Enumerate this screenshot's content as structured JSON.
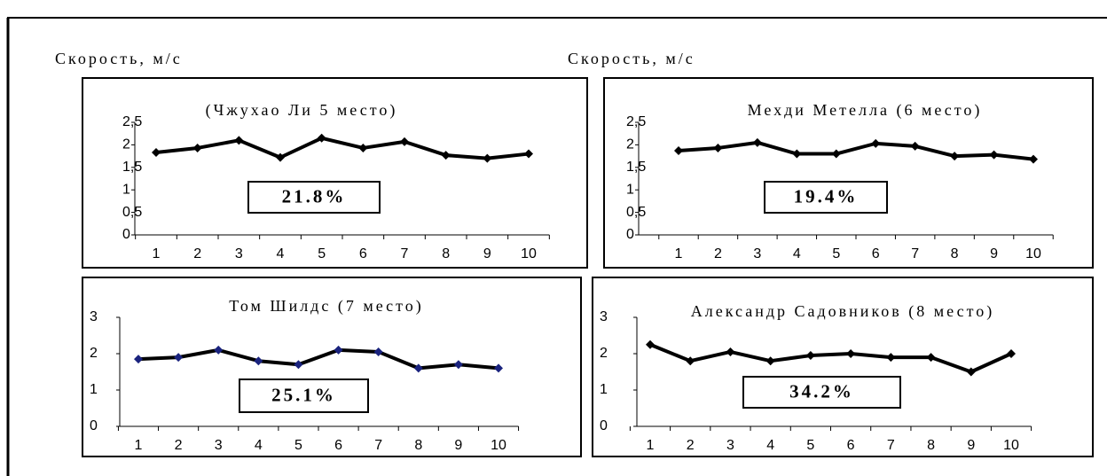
{
  "chart_data": [
    {
      "type": "line",
      "title": "(Чжухао Ли 5 место)",
      "y_label": "Скорость, м/с",
      "annotation": "21.8%",
      "categories": [
        "1",
        "2",
        "3",
        "4",
        "5",
        "6",
        "7",
        "8",
        "9",
        "10"
      ],
      "values": [
        1.83,
        1.93,
        2.1,
        1.72,
        2.15,
        1.93,
        2.07,
        1.77,
        1.7,
        1.8
      ],
      "color": "#000000",
      "ylim": [
        0,
        2.5
      ],
      "yticks": [
        0,
        {
          "value": 0.5,
          "label": "0,5"
        },
        1,
        {
          "value": 1.5,
          "label": "1,5"
        },
        2,
        {
          "value": 2.5,
          "label": "2,5"
        }
      ]
    },
    {
      "type": "line",
      "title": "Мехди Метелла (6 место)",
      "y_label": "Скорость, м/с",
      "annotation": "19.4%",
      "categories": [
        "1",
        "2",
        "3",
        "4",
        "5",
        "6",
        "7",
        "8",
        "9",
        "10"
      ],
      "values": [
        1.87,
        1.93,
        2.05,
        1.8,
        1.8,
        2.03,
        1.97,
        1.75,
        1.78,
        1.68
      ],
      "color": "#000000",
      "ylim": [
        0,
        2.5
      ],
      "yticks": [
        0,
        {
          "value": 0.5,
          "label": "0,5"
        },
        1,
        {
          "value": 1.5,
          "label": "1,5"
        },
        2,
        {
          "value": 2.5,
          "label": "2,5"
        }
      ]
    },
    {
      "type": "line",
      "title": "Том Шилдс (7 место)",
      "annotation": "25.1%",
      "categories": [
        "1",
        "2",
        "3",
        "4",
        "5",
        "6",
        "7",
        "8",
        "9",
        "10"
      ],
      "values": [
        1.85,
        1.9,
        2.1,
        1.8,
        1.7,
        2.1,
        2.05,
        1.6,
        1.7,
        1.6
      ],
      "color": "#000000",
      "marker_color": "#1a237e",
      "ylim": [
        0,
        3
      ],
      "yticks": [
        0,
        1,
        2,
        3
      ]
    },
    {
      "type": "line",
      "title": "Александр Садовников (8 место)",
      "annotation": "34.2%",
      "categories": [
        "1",
        "2",
        "3",
        "4",
        "5",
        "6",
        "7",
        "8",
        "9",
        "10"
      ],
      "values": [
        2.25,
        1.8,
        2.05,
        1.8,
        1.95,
        2.0,
        1.9,
        1.9,
        1.5,
        2.0
      ],
      "color": "#000000",
      "ylim": [
        0,
        3
      ],
      "yticks": [
        0,
        1,
        2,
        3
      ]
    }
  ]
}
